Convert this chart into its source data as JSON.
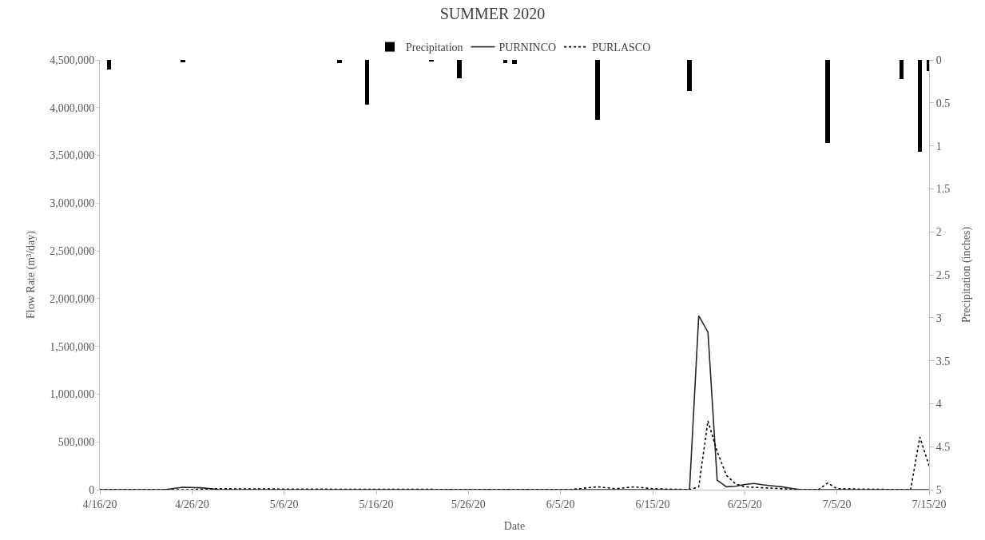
{
  "chart_data": {
    "type": "line",
    "title": "SUMMER 2020",
    "xlabel": "Date",
    "ylabel": "Flow Rate (m³/day)",
    "y2label": "Precipitation (inches)",
    "xlim": [
      "2020-04-16",
      "2020-07-15"
    ],
    "xticks": [
      {
        "value": "2020-04-16",
        "label": "4/16/20"
      },
      {
        "value": "2020-04-26",
        "label": "4/26/20"
      },
      {
        "value": "2020-05-06",
        "label": "5/6/20"
      },
      {
        "value": "2020-05-16",
        "label": "5/16/20"
      },
      {
        "value": "2020-05-26",
        "label": "5/26/20"
      },
      {
        "value": "2020-06-05",
        "label": "6/5/20"
      },
      {
        "value": "2020-06-15",
        "label": "6/15/20"
      },
      {
        "value": "2020-06-25",
        "label": "6/25/20"
      },
      {
        "value": "2020-07-05",
        "label": "7/5/20"
      },
      {
        "value": "2020-07-15",
        "label": "7/15/20"
      }
    ],
    "ylim": [
      0,
      4500000
    ],
    "yticks": [
      {
        "value": 0,
        "label": "0"
      },
      {
        "value": 500000,
        "label": "500,000"
      },
      {
        "value": 1000000,
        "label": "1,000,000"
      },
      {
        "value": 1500000,
        "label": "1,500,000"
      },
      {
        "value": 2000000,
        "label": "2,000,000"
      },
      {
        "value": 2500000,
        "label": "2,500,000"
      },
      {
        "value": 3000000,
        "label": "3,000,000"
      },
      {
        "value": 3500000,
        "label": "3,500,000"
      },
      {
        "value": 4000000,
        "label": "4,000,000"
      },
      {
        "value": 4500000,
        "label": "4,500,000"
      }
    ],
    "y2lim": [
      5,
      0
    ],
    "y2ticks": [
      0,
      0.5,
      1,
      1.5,
      2,
      2.5,
      3,
      3.5,
      4,
      4.5,
      5
    ],
    "legend": "top",
    "marker": "none",
    "series": [
      {
        "name": "Precipitation",
        "type": "bar",
        "axis": "y2",
        "color": "#000000",
        "x": [
          "2020-04-17",
          "2020-04-25",
          "2020-05-12",
          "2020-05-15",
          "2020-05-22",
          "2020-05-25",
          "2020-05-30",
          "2020-05-31",
          "2020-06-09",
          "2020-06-19",
          "2020-07-04",
          "2020-07-12",
          "2020-07-14",
          "2020-07-15"
        ],
        "values": [
          0.11,
          0.03,
          0.04,
          0.52,
          0.02,
          0.21,
          0.04,
          0.05,
          0.7,
          0.36,
          0.97,
          0.22,
          1.07,
          0.13
        ]
      },
      {
        "name": "PURNINCO",
        "line_style": "solid",
        "color": "#262626",
        "x": [
          "2020-04-16",
          "2020-04-23",
          "2020-04-25",
          "2020-04-27",
          "2020-04-29",
          "2020-06-19",
          "2020-06-20",
          "2020-06-21",
          "2020-06-22",
          "2020-06-23",
          "2020-06-24",
          "2020-06-25",
          "2020-06-26",
          "2020-06-27",
          "2020-06-28",
          "2020-06-29",
          "2020-06-30",
          "2020-07-01",
          "2020-07-15"
        ],
        "values": [
          0,
          0,
          25000,
          20000,
          0,
          0,
          1820000,
          1650000,
          100000,
          30000,
          35000,
          55000,
          65000,
          50000,
          40000,
          30000,
          15000,
          0,
          0
        ]
      },
      {
        "name": "PURLASCO",
        "line_style": "dotted",
        "color": "#000000",
        "x": [
          "2020-04-16",
          "2020-04-26",
          "2020-04-28",
          "2020-05-10",
          "2020-06-06",
          "2020-06-09",
          "2020-06-11",
          "2020-06-13",
          "2020-06-15",
          "2020-06-19",
          "2020-06-20",
          "2020-06-21",
          "2020-06-22",
          "2020-06-23",
          "2020-06-24",
          "2020-06-25",
          "2020-06-27",
          "2020-07-01",
          "2020-07-03",
          "2020-07-04",
          "2020-07-05",
          "2020-07-12",
          "2020-07-13",
          "2020-07-14",
          "2020-07-15"
        ],
        "values": [
          0,
          0,
          10000,
          5000,
          0,
          30000,
          10000,
          30000,
          10000,
          0,
          30000,
          720000,
          400000,
          150000,
          60000,
          30000,
          20000,
          0,
          0,
          70000,
          10000,
          0,
          0,
          550000,
          250000
        ]
      }
    ]
  }
}
